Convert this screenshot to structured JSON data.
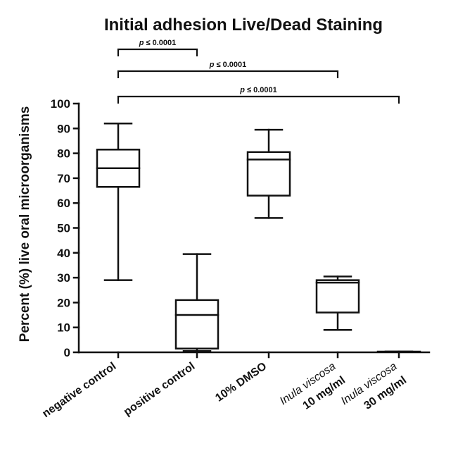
{
  "chart_data": {
    "type": "box",
    "title": "Initial adhesion Live/Dead Staining",
    "ylabel": "Percent (%) live oral microorganisms",
    "xlabel": "",
    "ylim": [
      0,
      100
    ],
    "yticks": [
      0,
      10,
      20,
      30,
      40,
      50,
      60,
      70,
      80,
      90,
      100
    ],
    "grid": false,
    "categories": [
      {
        "line1": "negative control",
        "line1_style": "bold",
        "line2": ""
      },
      {
        "line1": "positive control",
        "line1_style": "bold",
        "line2": ""
      },
      {
        "line1": "10% DMSO",
        "line1_style": "bold",
        "line2": ""
      },
      {
        "line1": "Inula viscosa",
        "line1_style": "italic",
        "line2": "10 mg/ml"
      },
      {
        "line1": "Inula viscosa",
        "line1_style": "italic",
        "line2": "30 mg/ml"
      }
    ],
    "boxes": [
      {
        "min": 29,
        "q1": 66.5,
        "median": 74,
        "q3": 81.5,
        "max": 92
      },
      {
        "min": 0.5,
        "q1": 1.5,
        "median": 15,
        "q3": 21,
        "max": 39.5
      },
      {
        "min": 54,
        "q1": 63,
        "median": 77.5,
        "q3": 80.5,
        "max": 89.5
      },
      {
        "min": 9,
        "q1": 16,
        "median": 28,
        "q3": 29,
        "max": 30.5
      },
      {
        "min": 0.3,
        "q1": 0.3,
        "median": 0.3,
        "q3": 0.3,
        "max": 0.3
      }
    ],
    "significance": [
      {
        "from": 0,
        "to": 1,
        "p_symbol": "p",
        "label": " ≤ 0.0001"
      },
      {
        "from": 0,
        "to": 3,
        "p_symbol": "p",
        "label": " ≤ 0.0001"
      },
      {
        "from": 0,
        "to": 4,
        "p_symbol": "p",
        "label": " ≤ 0.0001"
      }
    ],
    "colors": {
      "ink": "#111111",
      "box_fill": "#ffffff"
    }
  }
}
